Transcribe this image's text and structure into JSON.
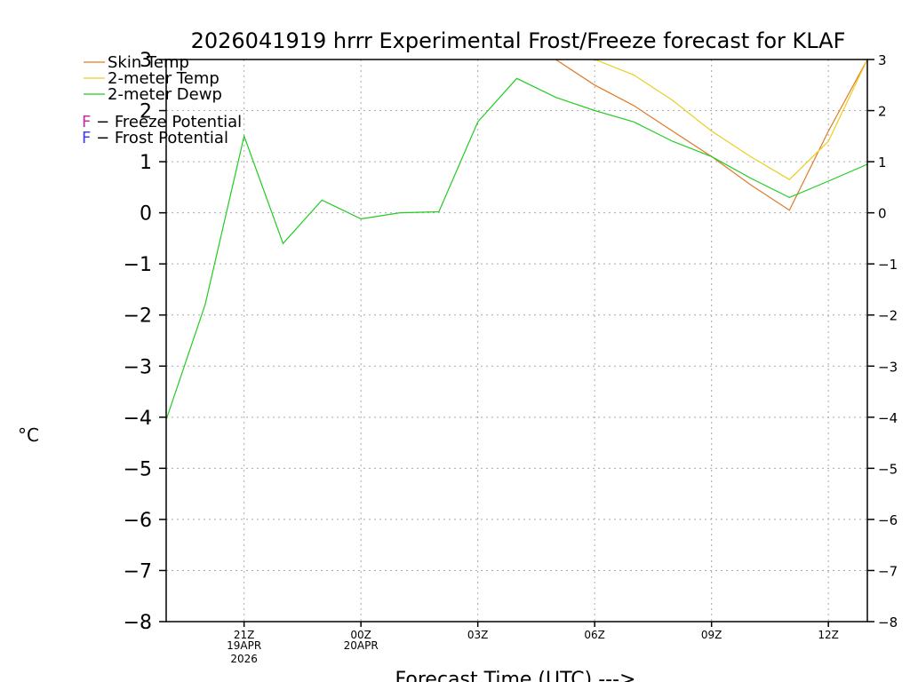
{
  "chart_data": {
    "type": "line",
    "title": "2026041919 hrrr Experimental Frost/Freeze forecast for KLAF",
    "xlabel": "Forecast Time (UTC) --->",
    "ylabel": "°C",
    "ylim": [
      -8,
      3
    ],
    "yticks": [
      -8,
      -7,
      -6,
      -5,
      -4,
      -3,
      -2,
      -1,
      0,
      1,
      2,
      3
    ],
    "xlim": [
      0,
      18
    ],
    "x": [
      0,
      1,
      2,
      3,
      4,
      5,
      6,
      7,
      8,
      9,
      10,
      11,
      12,
      13,
      14,
      15,
      16,
      17,
      18
    ],
    "xticks": [
      {
        "pos": 2,
        "label": "21Z",
        "sub1": "19APR",
        "sub2": "2026"
      },
      {
        "pos": 5,
        "label": "00Z",
        "sub1": "20APR",
        "sub2": ""
      },
      {
        "pos": 8,
        "label": "03Z",
        "sub1": "",
        "sub2": ""
      },
      {
        "pos": 11,
        "label": "06Z",
        "sub1": "",
        "sub2": ""
      },
      {
        "pos": 14,
        "label": "09Z",
        "sub1": "",
        "sub2": ""
      },
      {
        "pos": 17,
        "label": "12Z",
        "sub1": "",
        "sub2": ""
      }
    ],
    "series": [
      {
        "name": "Skin Temp",
        "color": "#e07b28",
        "values": [
          null,
          null,
          null,
          null,
          null,
          null,
          null,
          null,
          null,
          null,
          3.0,
          2.5,
          2.1,
          1.6,
          1.1,
          0.55,
          0.05,
          1.6,
          3.0
        ]
      },
      {
        "name": "2-meter Temp",
        "color": "#e8d020",
        "values": [
          null,
          null,
          null,
          null,
          null,
          null,
          null,
          null,
          null,
          null,
          null,
          3.0,
          2.7,
          2.2,
          1.6,
          1.1,
          0.65,
          1.4,
          3.0
        ]
      },
      {
        "name": "2-meter Dewp",
        "color": "#22cc22",
        "values": [
          -4.05,
          -1.8,
          1.5,
          -0.6,
          0.25,
          -0.12,
          0.0,
          0.02,
          1.78,
          2.63,
          2.26,
          2.0,
          1.78,
          1.4,
          1.1,
          0.68,
          0.3,
          0.62,
          0.95
        ]
      }
    ],
    "potential_legend": [
      {
        "letter": "F",
        "text": " − Freeze Potential",
        "color": "#c030a0"
      },
      {
        "letter": "F",
        "text": " − Frost Potential",
        "color": "#4040e0"
      }
    ]
  }
}
